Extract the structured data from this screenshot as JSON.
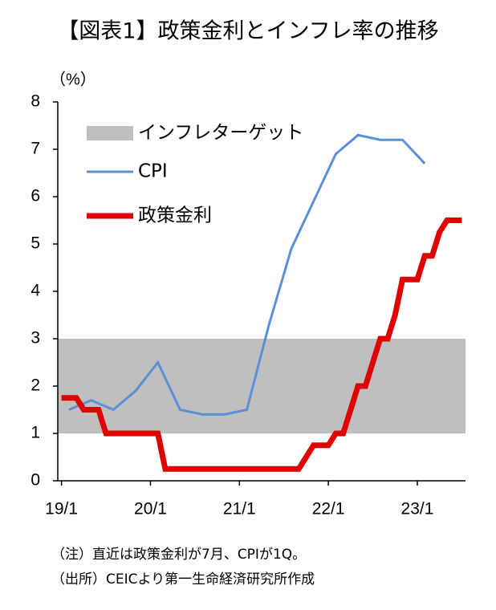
{
  "chart_data": {
    "type": "line",
    "title": "【図表1】政策金利とインフレ率の推移",
    "y_label": "（%）",
    "notes": [
      "（注）直近は政策金利が7月、CPIが1Q。",
      "（出所）CEICより第一生命経済研究所作成"
    ],
    "xlim": [
      -0.5,
      54.5
    ],
    "xticks": [
      {
        "value": 0,
        "label": "19/1"
      },
      {
        "value": 12,
        "label": "20/1"
      },
      {
        "value": 24,
        "label": "21/1"
      },
      {
        "value": 36,
        "label": "22/1"
      },
      {
        "value": 48,
        "label": "23/1"
      }
    ],
    "ylim": [
      0,
      8
    ],
    "yticks": [
      0,
      1,
      2,
      3,
      4,
      5,
      6,
      7,
      8
    ],
    "target_band": {
      "name": "インフレターゲット",
      "color": "#bfbfbf",
      "range": [
        1,
        3
      ]
    },
    "series": [
      {
        "name": "CPI",
        "color": "#5b8fd6",
        "width": 3,
        "x": [
          1,
          4,
          7,
          10,
          13,
          16,
          19,
          22,
          25,
          28,
          31,
          34,
          37,
          40,
          43,
          46,
          49
        ],
        "values": [
          1.5,
          1.7,
          1.5,
          1.9,
          2.5,
          1.5,
          1.4,
          1.4,
          1.5,
          3.3,
          4.9,
          5.9,
          6.9,
          7.3,
          7.2,
          7.2,
          6.7
        ]
      },
      {
        "name": "政策金利",
        "color": "#e00000",
        "width": 7,
        "x": [
          0,
          1,
          2,
          3,
          4,
          5,
          6,
          7,
          8,
          9,
          10,
          11,
          12,
          13,
          14,
          15,
          16,
          17,
          18,
          19,
          20,
          21,
          22,
          23,
          24,
          25,
          26,
          27,
          28,
          29,
          30,
          31,
          32,
          33,
          34,
          35,
          36,
          37,
          38,
          39,
          40,
          41,
          42,
          43,
          44,
          45,
          46,
          47,
          48,
          49,
          50,
          51,
          52,
          53,
          54
        ],
        "values": [
          1.75,
          1.75,
          1.75,
          1.5,
          1.5,
          1.5,
          1.0,
          1.0,
          1.0,
          1.0,
          1.0,
          1.0,
          1.0,
          1.0,
          0.25,
          0.25,
          0.25,
          0.25,
          0.25,
          0.25,
          0.25,
          0.25,
          0.25,
          0.25,
          0.25,
          0.25,
          0.25,
          0.25,
          0.25,
          0.25,
          0.25,
          0.25,
          0.25,
          0.5,
          0.75,
          0.75,
          0.75,
          1.0,
          1.0,
          1.5,
          2.0,
          2.0,
          2.5,
          3.0,
          3.0,
          3.5,
          4.25,
          4.25,
          4.25,
          4.75,
          4.75,
          5.25,
          5.5,
          5.5,
          5.5
        ]
      }
    ]
  }
}
